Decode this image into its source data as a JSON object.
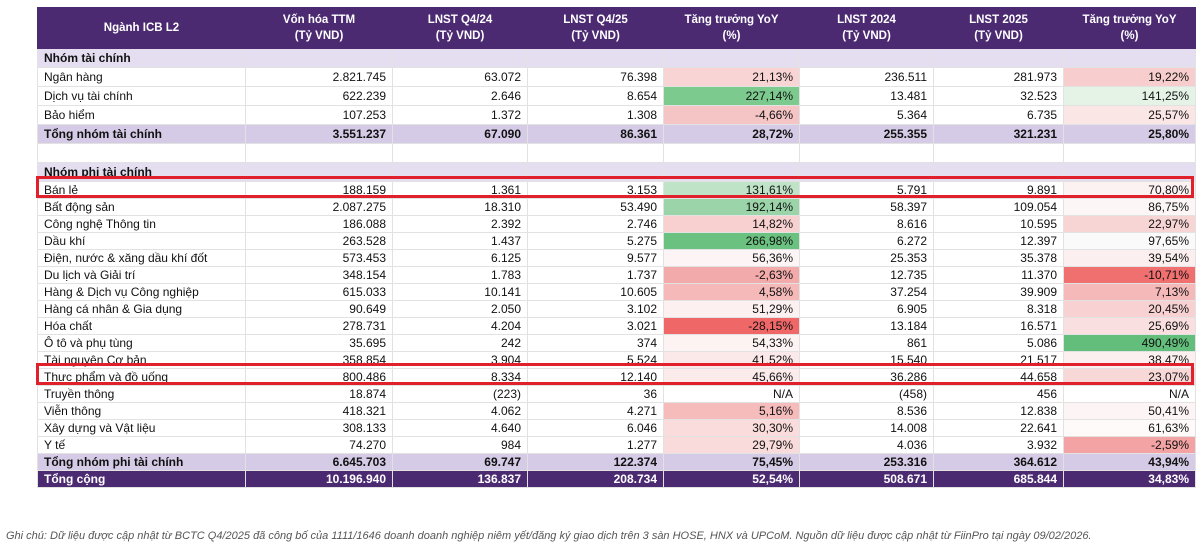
{
  "header": {
    "columns": [
      [
        "Ngành ICB L2"
      ],
      [
        "Vốn hóa TTM",
        "(Tỷ VND)"
      ],
      [
        "LNST Q4/24",
        "(Tỷ VND)"
      ],
      [
        "LNST Q4/25",
        "(Tỷ VND)"
      ],
      [
        "Tăng trưởng YoY",
        "(%)"
      ],
      [
        "LNST 2024",
        "(Tỷ VND)"
      ],
      [
        "LNST 2025",
        "(Tỷ VND)"
      ],
      [
        "Tăng trưởng YoY",
        "(%)"
      ]
    ]
  },
  "sections": [
    {
      "title": "Nhóm tài chính",
      "rows": [
        [
          "Ngân hàng",
          "2.821.745",
          "63.072",
          "76.398",
          "21,13%",
          "236.511",
          "281.973",
          "19,22%"
        ],
        [
          "Dịch vụ tài chính",
          "622.239",
          "2.646",
          "8.654",
          "227,14%",
          "13.481",
          "32.523",
          "141,25%"
        ],
        [
          "Bảo hiểm",
          "107.253",
          "1.372",
          "1.308",
          "-4,66%",
          "5.364",
          "6.735",
          "25,57%"
        ]
      ],
      "total": [
        "Tổng nhóm tài chính",
        "3.551.237",
        "67.090",
        "86.361",
        "28,72%",
        "255.355",
        "321.231",
        "25,80%"
      ]
    },
    {
      "title": "Nhóm phi tài chính",
      "rows": [
        [
          "Bán lẻ",
          "188.159",
          "1.361",
          "3.153",
          "131,61%",
          "5.791",
          "9.891",
          "70,80%"
        ],
        [
          "Bất động sản",
          "2.087.275",
          "18.310",
          "53.490",
          "192,14%",
          "58.397",
          "109.054",
          "86,75%"
        ],
        [
          "Công nghệ Thông tin",
          "186.088",
          "2.392",
          "2.746",
          "14,82%",
          "8.616",
          "10.595",
          "22,97%"
        ],
        [
          "Dầu khí",
          "263.528",
          "1.437",
          "5.275",
          "266,98%",
          "6.272",
          "12.397",
          "97,65%"
        ],
        [
          "Điện, nước & xăng dầu khí đốt",
          "573.453",
          "6.125",
          "9.577",
          "56,36%",
          "25.353",
          "35.378",
          "39,54%"
        ],
        [
          "Du lịch và Giải trí",
          "348.154",
          "1.783",
          "1.737",
          "-2,63%",
          "12.735",
          "11.370",
          "-10,71%"
        ],
        [
          "Hàng & Dịch vụ Công nghiệp",
          "615.033",
          "10.141",
          "10.605",
          "4,58%",
          "37.254",
          "39.909",
          "7,13%"
        ],
        [
          "Hàng cá nhân & Gia dụng",
          "90.649",
          "2.050",
          "3.102",
          "51,29%",
          "6.905",
          "8.318",
          "20,45%"
        ],
        [
          "Hóa chất",
          "278.731",
          "4.204",
          "3.021",
          "-28,15%",
          "13.184",
          "16.571",
          "25,69%"
        ],
        [
          "Ô tô và phụ tùng",
          "35.695",
          "242",
          "374",
          "54,33%",
          "861",
          "5.086",
          "490,49%"
        ],
        [
          "Tài nguyên Cơ bản",
          "358.854",
          "3.904",
          "5.524",
          "41,52%",
          "15.540",
          "21.517",
          "38,47%"
        ],
        [
          "Thực phẩm và đồ uống",
          "800.486",
          "8.334",
          "12.140",
          "45,66%",
          "36.286",
          "44.658",
          "23,07%"
        ],
        [
          "Truyền thông",
          "18.874",
          "(223)",
          "36",
          "N/A",
          "(458)",
          "456",
          "N/A"
        ],
        [
          "Viễn thông",
          "418.321",
          "4.062",
          "4.271",
          "5,16%",
          "8.536",
          "12.838",
          "50,41%"
        ],
        [
          "Xây dựng và Vật liệu",
          "308.133",
          "4.640",
          "6.046",
          "30,30%",
          "14.008",
          "22.641",
          "61,63%"
        ],
        [
          "Y tế",
          "74.270",
          "984",
          "1.277",
          "29,79%",
          "4.036",
          "3.932",
          "-2,59%"
        ]
      ],
      "total": [
        "Tổng nhóm phi tài chính",
        "6.645.703",
        "69.747",
        "122.374",
        "75,45%",
        "253.316",
        "364.612",
        "43,94%"
      ]
    }
  ],
  "grand_total": [
    "Tổng cộng",
    "10.196.940",
    "136.837",
    "208.734",
    "52,54%",
    "508.671",
    "685.844",
    "34,83%"
  ],
  "footnote": "Ghi chú: Dữ liệu được cập nhật từ BCTC Q4/2025 đã công bố của 1111/1646 doanh doanh nghiệp niêm yết/đăng ký giao dịch trên 3 sàn HOSE, HNX và UPCoM. Nguồn dữ liệu được cập nhật từ FiinPro tại ngày 09/02/2026."
}
